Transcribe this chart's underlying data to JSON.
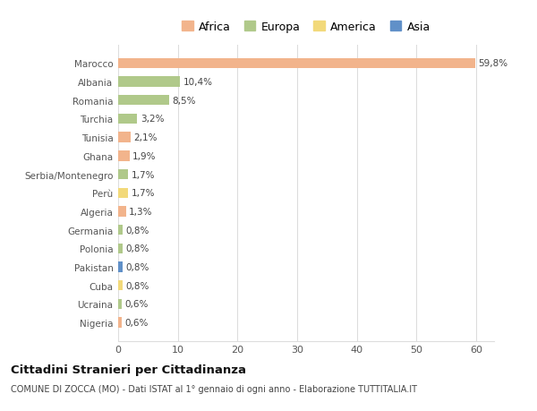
{
  "categories": [
    "Marocco",
    "Albania",
    "Romania",
    "Turchia",
    "Tunisia",
    "Ghana",
    "Serbia/Montenegro",
    "Perù",
    "Algeria",
    "Germania",
    "Polonia",
    "Pakistan",
    "Cuba",
    "Ucraina",
    "Nigeria"
  ],
  "values": [
    59.8,
    10.4,
    8.5,
    3.2,
    2.1,
    1.9,
    1.7,
    1.7,
    1.3,
    0.8,
    0.8,
    0.8,
    0.8,
    0.6,
    0.6
  ],
  "labels": [
    "59,8%",
    "10,4%",
    "8,5%",
    "3,2%",
    "2,1%",
    "1,9%",
    "1,7%",
    "1,7%",
    "1,3%",
    "0,8%",
    "0,8%",
    "0,8%",
    "0,8%",
    "0,6%",
    "0,6%"
  ],
  "continents": [
    "Africa",
    "Europa",
    "Europa",
    "Europa",
    "Africa",
    "Africa",
    "Europa",
    "America",
    "Africa",
    "Europa",
    "Europa",
    "Asia",
    "America",
    "Europa",
    "Africa"
  ],
  "colors": {
    "Africa": "#F2B48C",
    "Europa": "#B0C98A",
    "America": "#F2D97A",
    "Asia": "#6090C8"
  },
  "legend_labels": [
    "Africa",
    "Europa",
    "America",
    "Asia"
  ],
  "legend_colors": [
    "#F2B48C",
    "#B0C98A",
    "#F2D97A",
    "#6090C8"
  ],
  "title": "Cittadini Stranieri per Cittadinanza",
  "subtitle": "COMUNE DI ZOCCA (MO) - Dati ISTAT al 1° gennaio di ogni anno - Elaborazione TUTTITALIA.IT",
  "xlim": [
    0,
    63
  ],
  "xticks": [
    0,
    10,
    20,
    30,
    40,
    50,
    60
  ],
  "background_color": "#ffffff",
  "grid_color": "#dddddd"
}
